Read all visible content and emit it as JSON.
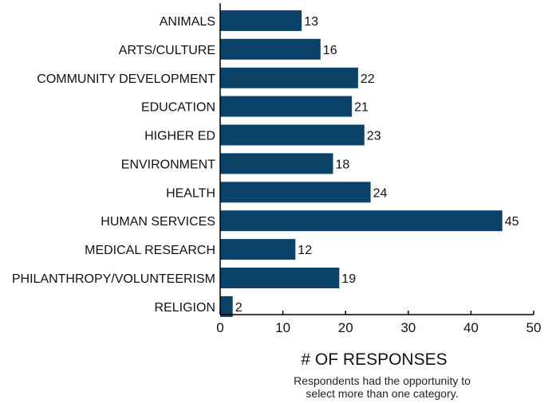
{
  "chart_data": {
    "type": "bar",
    "orientation": "horizontal",
    "categories": [
      "ANIMALS",
      "ARTS/CULTURE",
      "COMMUNITY DEVELOPMENT",
      "EDUCATION",
      "HIGHER ED",
      "ENVIRONMENT",
      "HEALTH",
      "HUMAN SERVICES",
      "MEDICAL RESEARCH",
      "PHILANTHROPY/VOLUNTEERISM",
      "RELIGION"
    ],
    "values": [
      13,
      16,
      22,
      21,
      23,
      18,
      24,
      45,
      12,
      19,
      2
    ],
    "xlabel": "# OF RESPONSES",
    "xlim": [
      0,
      50
    ],
    "xticks": [
      0,
      10,
      20,
      30,
      40,
      50
    ],
    "grid": false,
    "bar_color": "#0b4268",
    "note_lines": [
      "Respondents had the opportunity to",
      "select more than one category."
    ]
  }
}
